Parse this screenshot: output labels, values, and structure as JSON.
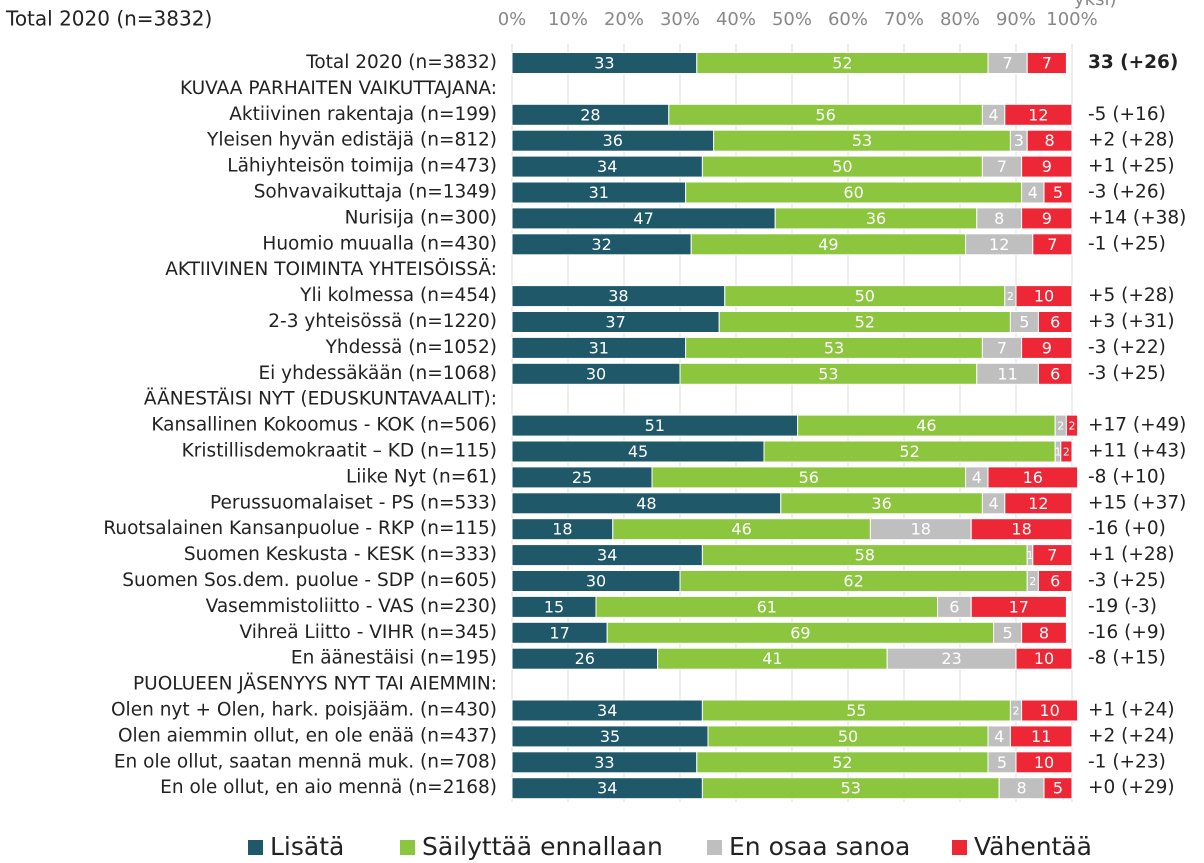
{
  "chart_data": {
    "type": "stacked_barh",
    "title": "Total 2020 (n=3832)",
    "note": "yksi)",
    "categories": [
      "Total 2020 (n=3832)",
      "KUVAA PARHAITEN VAIKUTTAJANA:",
      "Aktiivinen rakentaja (n=199)",
      "Yleisen hyvän edistäjä (n=812)",
      "Lähiyhteisön toimija (n=473)",
      "Sohvavaikuttaja (n=1349)",
      "Nurisija (n=300)",
      "Huomio muualla (n=430)",
      "AKTIIVINEN TOIMINTA YHTEISÖISSÄ:",
      "Yli kolmessa (n=454)",
      "2-3 yhteisössä (n=1220)",
      "Yhdessä (n=1052)",
      "Ei yhdessäkään (n=1068)",
      "ÄÄNESTÄISI NYT (EDUSKUNTAVAALIT):",
      "Kansallinen Kokoomus - KOK (n=506)",
      "Kristillisdemokraatit – KD (n=115)",
      "Liike Nyt (n=61)",
      "Perussuomalaiset - PS (n=533)",
      "Ruotsalainen Kansanpuolue - RKP (n=115)",
      "Suomen Keskusta - KESK (n=333)",
      "Suomen Sos.dem. puolue - SDP (n=605)",
      "Vasemmistoliitto - VAS (n=230)",
      "Vihreä Liitto - VIHR (n=345)",
      "En äänestäisi (n=195)",
      "PUOLUEEN JÄSENYYS NYT TAI AIEMMIN:",
      "Olen nyt + Olen, hark. poisjääm. (n=430)",
      "Olen aiemmin ollut, en ole enää (n=437)",
      "En ole ollut, saatan mennä muk. (n=708)",
      "En ole ollut, en aio mennä (n=2168)"
    ],
    "series": [
      {
        "name": "Lisätä",
        "color": "#1f5869",
        "values": [
          33,
          null,
          28,
          36,
          34,
          31,
          47,
          32,
          null,
          38,
          37,
          31,
          30,
          null,
          51,
          45,
          25,
          48,
          18,
          34,
          30,
          15,
          17,
          26,
          null,
          34,
          35,
          33,
          34
        ]
      },
      {
        "name": "Säilyttää ennallaan",
        "color": "#8cc63f",
        "values": [
          52,
          null,
          56,
          53,
          50,
          60,
          36,
          49,
          null,
          50,
          52,
          53,
          53,
          null,
          46,
          52,
          56,
          36,
          46,
          58,
          62,
          61,
          69,
          41,
          null,
          55,
          50,
          52,
          53
        ]
      },
      {
        "name": "En osaa sanoa",
        "color": "#bfbfbf",
        "values": [
          7,
          null,
          4,
          3,
          7,
          4,
          8,
          12,
          null,
          2,
          5,
          7,
          11,
          null,
          2,
          1,
          4,
          4,
          18,
          1,
          2,
          6,
          5,
          23,
          null,
          2,
          4,
          5,
          8
        ]
      },
      {
        "name": "Vähentää",
        "color": "#ee2737",
        "values": [
          7,
          null,
          12,
          8,
          9,
          5,
          9,
          7,
          null,
          10,
          6,
          9,
          6,
          null,
          2,
          2,
          16,
          12,
          18,
          7,
          6,
          17,
          8,
          10,
          null,
          10,
          11,
          10,
          5
        ]
      }
    ],
    "right_labels": [
      "33 (+26)",
      null,
      "-5 (+16)",
      "+2 (+28)",
      "+1 (+25)",
      "-3 (+26)",
      "+14 (+38)",
      "-1 (+25)",
      null,
      "+5 (+28)",
      "+3 (+31)",
      "-3 (+22)",
      "-3 (+25)",
      null,
      "+17 (+49)",
      "+11 (+43)",
      "-8 (+10)",
      "+15 (+37)",
      "-16 (+0)",
      "+1 (+28)",
      "-3 (+25)",
      "-19 (-3)",
      "-16 (+9)",
      "-8 (+15)",
      null,
      "+1 (+24)",
      "+2 (+24)",
      "-1 (+23)",
      "+0 (+29)"
    ],
    "bold_rows": [
      0
    ],
    "xlim": [
      0,
      100
    ],
    "xticks": [
      {
        "value": 0,
        "label": "0%"
      },
      {
        "value": 10,
        "label": "10%"
      },
      {
        "value": 20,
        "label": "20%"
      },
      {
        "value": 30,
        "label": "30%"
      },
      {
        "value": 40,
        "label": "40%"
      },
      {
        "value": 50,
        "label": "50%"
      },
      {
        "value": 60,
        "label": "60%"
      },
      {
        "value": 70,
        "label": "70%"
      },
      {
        "value": 80,
        "label": "80%"
      },
      {
        "value": 90,
        "label": "90%"
      },
      {
        "value": 100,
        "label": "100%"
      }
    ],
    "grid": true,
    "legend": "bottom"
  }
}
